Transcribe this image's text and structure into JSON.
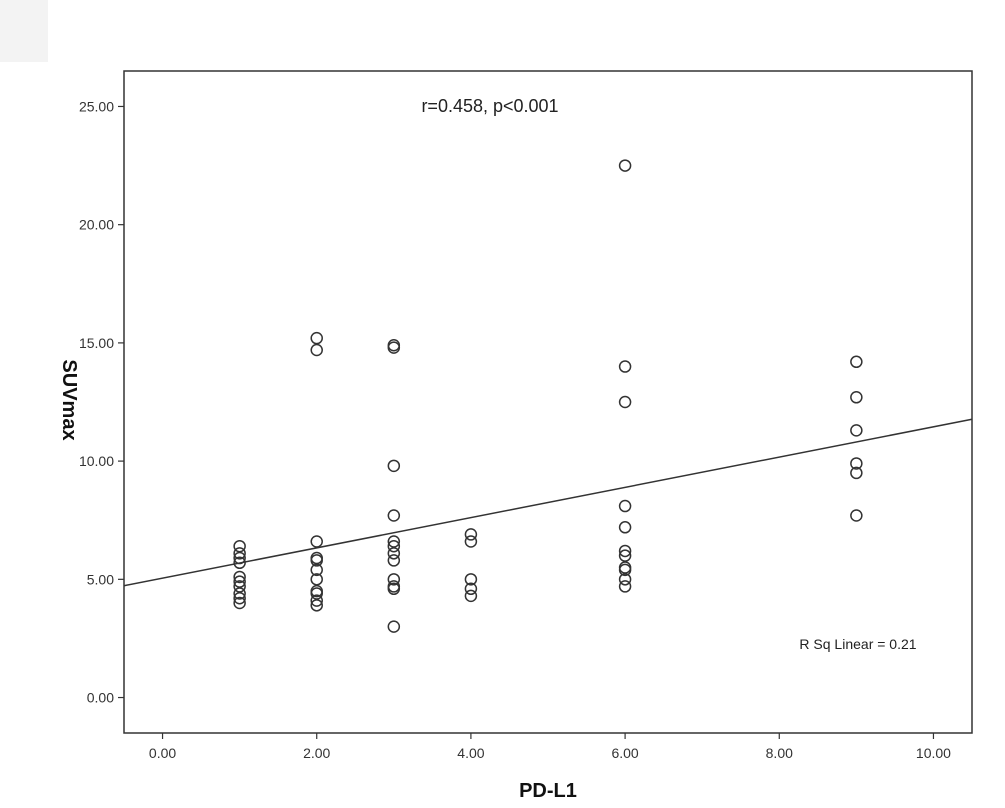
{
  "chart_data": {
    "type": "scatter",
    "title": "",
    "xlabel": "PD-L1",
    "ylabel": "SUVmax",
    "xlim": [
      -0.5,
      10.5
    ],
    "ylim": [
      -1.5,
      26.5
    ],
    "x_ticks": [
      0,
      2,
      4,
      6,
      8,
      10
    ],
    "y_ticks": [
      0,
      5,
      10,
      15,
      20,
      25
    ],
    "x_tick_labels": [
      "0.00",
      "2.00",
      "4.00",
      "6.00",
      "8.00",
      "10.00"
    ],
    "y_tick_labels": [
      "0.00",
      "5.00",
      "10.00",
      "15.00",
      "20.00",
      "25.00"
    ],
    "grid": false,
    "marker": "open-circle",
    "marker_color": "#333333",
    "line_color": "#333333",
    "points": [
      {
        "x": 1,
        "y": 6.4
      },
      {
        "x": 1,
        "y": 6.1
      },
      {
        "x": 1,
        "y": 5.9
      },
      {
        "x": 1,
        "y": 5.7
      },
      {
        "x": 1,
        "y": 5.1
      },
      {
        "x": 1,
        "y": 4.9
      },
      {
        "x": 1,
        "y": 4.7
      },
      {
        "x": 1,
        "y": 4.4
      },
      {
        "x": 1,
        "y": 4.2
      },
      {
        "x": 1,
        "y": 4.0
      },
      {
        "x": 2,
        "y": 15.2
      },
      {
        "x": 2,
        "y": 14.7
      },
      {
        "x": 2,
        "y": 6.6
      },
      {
        "x": 2,
        "y": 5.9
      },
      {
        "x": 2,
        "y": 5.8
      },
      {
        "x": 2,
        "y": 5.4
      },
      {
        "x": 2,
        "y": 5.0
      },
      {
        "x": 2,
        "y": 4.5
      },
      {
        "x": 2,
        "y": 4.4
      },
      {
        "x": 2,
        "y": 4.1
      },
      {
        "x": 2,
        "y": 3.9
      },
      {
        "x": 3,
        "y": 14.9
      },
      {
        "x": 3,
        "y": 14.8
      },
      {
        "x": 3,
        "y": 9.8
      },
      {
        "x": 3,
        "y": 7.7
      },
      {
        "x": 3,
        "y": 6.6
      },
      {
        "x": 3,
        "y": 6.4
      },
      {
        "x": 3,
        "y": 6.1
      },
      {
        "x": 3,
        "y": 5.8
      },
      {
        "x": 3,
        "y": 5.0
      },
      {
        "x": 3,
        "y": 4.7
      },
      {
        "x": 3,
        "y": 4.6
      },
      {
        "x": 3,
        "y": 3.0
      },
      {
        "x": 4,
        "y": 6.9
      },
      {
        "x": 4,
        "y": 6.6
      },
      {
        "x": 4,
        "y": 5.0
      },
      {
        "x": 4,
        "y": 4.6
      },
      {
        "x": 4,
        "y": 4.3
      },
      {
        "x": 6,
        "y": 22.5
      },
      {
        "x": 6,
        "y": 14.0
      },
      {
        "x": 6,
        "y": 12.5
      },
      {
        "x": 6,
        "y": 8.1
      },
      {
        "x": 6,
        "y": 7.2
      },
      {
        "x": 6,
        "y": 6.2
      },
      {
        "x": 6,
        "y": 6.0
      },
      {
        "x": 6,
        "y": 5.5
      },
      {
        "x": 6,
        "y": 5.4
      },
      {
        "x": 6,
        "y": 5.0
      },
      {
        "x": 6,
        "y": 4.7
      },
      {
        "x": 9,
        "y": 14.2
      },
      {
        "x": 9,
        "y": 12.7
      },
      {
        "x": 9,
        "y": 11.3
      },
      {
        "x": 9,
        "y": 9.9
      },
      {
        "x": 9,
        "y": 9.5
      },
      {
        "x": 9,
        "y": 7.7
      }
    ],
    "fit_line": {
      "type": "linear",
      "intercept": 5.05,
      "slope": 0.64
    },
    "annotations": {
      "correlation": "r=0.458,  p<0.001",
      "r_squared": "R Sq Linear = 0.21"
    }
  }
}
